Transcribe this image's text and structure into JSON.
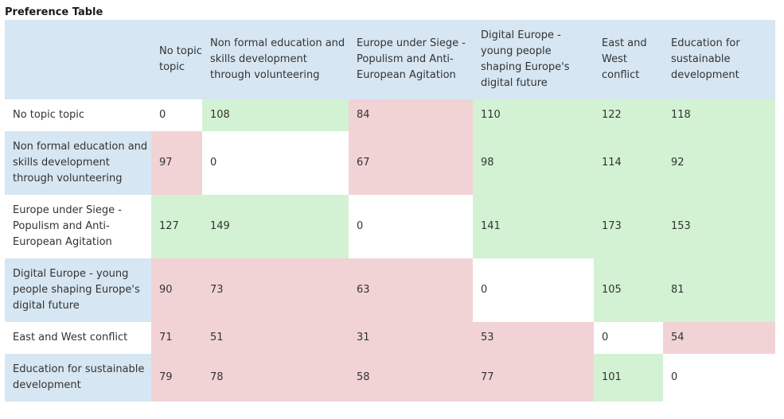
{
  "title": "Preference Table",
  "columns": [
    "",
    "No topic topic",
    "Non formal education and skills development through volunteering",
    "Europe under Siege - Populism and Anti-European Agitation",
    "Digital Europe - young people shaping Europe's digital future",
    "East and West conflict",
    "Education for sustainable development"
  ],
  "rows": [
    {
      "label": "No topic topic",
      "values": [
        "0",
        "108",
        "84",
        "110",
        "122",
        "118"
      ],
      "states": [
        "zero",
        "green",
        "red",
        "green",
        "green",
        "green"
      ]
    },
    {
      "label": "Non formal education and skills development through volunteering",
      "values": [
        "97",
        "0",
        "67",
        "98",
        "114",
        "92"
      ],
      "states": [
        "red",
        "zero",
        "red",
        "green",
        "green",
        "green"
      ]
    },
    {
      "label": "Europe under Siege - Populism and Anti-European Agitation",
      "values": [
        "127",
        "149",
        "0",
        "141",
        "173",
        "153"
      ],
      "states": [
        "green",
        "green",
        "zero",
        "green",
        "green",
        "green"
      ]
    },
    {
      "label": "Digital Europe - young people shaping Europe's digital future",
      "values": [
        "90",
        "73",
        "63",
        "0",
        "105",
        "81"
      ],
      "states": [
        "red",
        "red",
        "red",
        "zero",
        "green",
        "green"
      ]
    },
    {
      "label": "East and West conflict",
      "values": [
        "71",
        "51",
        "31",
        "53",
        "0",
        "54"
      ],
      "states": [
        "red",
        "red",
        "red",
        "red",
        "zero",
        "red"
      ]
    },
    {
      "label": "Education for sustainable development",
      "values": [
        "79",
        "78",
        "58",
        "77",
        "101",
        "0"
      ],
      "states": [
        "red",
        "red",
        "red",
        "red",
        "green",
        "zero"
      ]
    }
  ],
  "colors": {
    "header_bg": "#d6e6f2",
    "cell_green": "#d3f2d3",
    "cell_red": "#f2d3d5",
    "cell_zero": "#ffffff"
  }
}
